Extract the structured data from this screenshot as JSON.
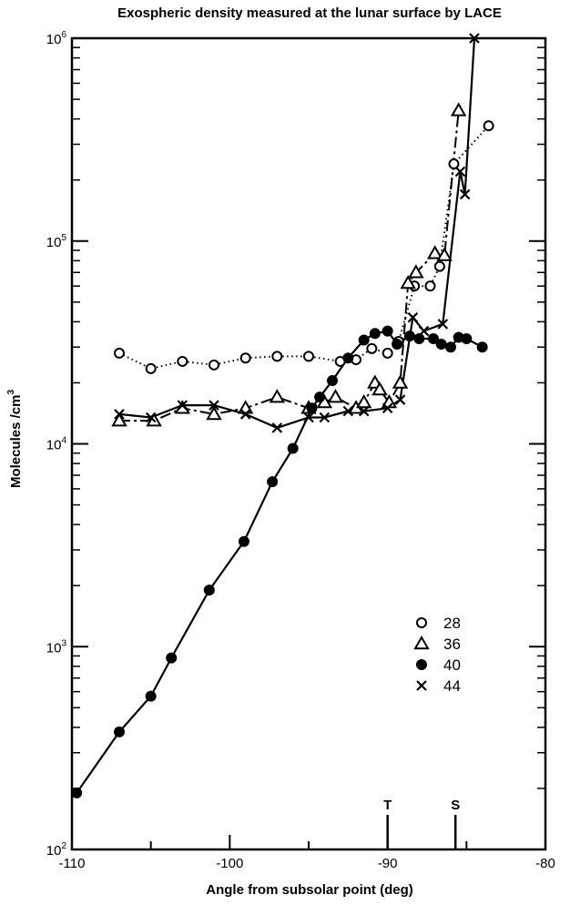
{
  "chart_data": {
    "type": "line",
    "title": "Exospheric density measured at the lunar surface by LACE",
    "xlabel": "Angle from subsolar point (deg)",
    "ylabel": "Molecules /cm",
    "ylabel_sup": "3",
    "xlim": [
      -110,
      -80
    ],
    "ylim": [
      100,
      1000000
    ],
    "y_scale": "log",
    "x_ticks": [
      -110,
      -100,
      -90,
      -80
    ],
    "x_tick_labels": [
      "-110",
      "-100",
      "-90",
      "-80"
    ],
    "y_ticks": [
      {
        "value": 100,
        "base": "10",
        "exp": "2"
      },
      {
        "value": 1000,
        "base": "10",
        "exp": "3"
      },
      {
        "value": 10000,
        "base": "10",
        "exp": "4"
      },
      {
        "value": 100000,
        "base": "10",
        "exp": "5"
      },
      {
        "value": 1000000,
        "base": "10",
        "exp": "6"
      }
    ],
    "grid": false,
    "legend_position": "lower-right",
    "markers": [
      {
        "label": "T",
        "x": -90
      },
      {
        "label": "S",
        "x": -85.7
      }
    ],
    "series": [
      {
        "name": "28",
        "marker": "open-circle",
        "line": "dotted",
        "points": [
          [
            -107,
            28000
          ],
          [
            -105,
            23500
          ],
          [
            -103,
            25500
          ],
          [
            -101,
            24500
          ],
          [
            -99,
            26500
          ],
          [
            -97,
            27000
          ],
          [
            -95,
            27000
          ],
          [
            -93,
            25500
          ],
          [
            -92,
            26000
          ],
          [
            -91,
            29500
          ],
          [
            -90,
            28000
          ],
          [
            -89.3,
            32000
          ],
          [
            -88.3,
            60000
          ],
          [
            -87.3,
            60000
          ],
          [
            -86.7,
            75000
          ],
          [
            -85.8,
            240000
          ],
          [
            -83.6,
            370000
          ]
        ]
      },
      {
        "name": "36",
        "marker": "open-triangle",
        "line": "dash-dot",
        "points": [
          [
            -107,
            13000
          ],
          [
            -104.8,
            13000
          ],
          [
            -103,
            15000
          ],
          [
            -101,
            14000
          ],
          [
            -99,
            15000
          ],
          [
            -97,
            17000
          ],
          [
            -95,
            15000
          ],
          [
            -94,
            16000
          ],
          [
            -93.3,
            17000
          ],
          [
            -92,
            15000
          ],
          [
            -91.5,
            16000
          ],
          [
            -90.8,
            20000
          ],
          [
            -90.5,
            18500
          ],
          [
            -89.9,
            16000
          ],
          [
            -89.2,
            20000
          ],
          [
            -88.7,
            62000
          ],
          [
            -88.2,
            70000
          ],
          [
            -87,
            87000
          ],
          [
            -86.4,
            85000
          ],
          [
            -85.5,
            440000
          ]
        ]
      },
      {
        "name": "40",
        "marker": "filled-circle",
        "line": "solid",
        "points": [
          [
            -109.7,
            190
          ],
          [
            -107,
            380
          ],
          [
            -105,
            570
          ],
          [
            -103.7,
            880
          ],
          [
            -101.3,
            1900
          ],
          [
            -99.1,
            3300
          ],
          [
            -97.3,
            6500
          ],
          [
            -96,
            9500
          ],
          [
            -94.8,
            15000
          ],
          [
            -94.3,
            17000
          ],
          [
            -93.5,
            20500
          ],
          [
            -92.5,
            26500
          ],
          [
            -91.5,
            32500
          ],
          [
            -90.8,
            35000
          ],
          [
            -90,
            36000
          ],
          [
            -89.4,
            31000
          ],
          [
            -88.6,
            34000
          ],
          [
            -88,
            33000
          ],
          [
            -87.1,
            33000
          ],
          [
            -86.6,
            31000
          ],
          [
            -86,
            30000
          ],
          [
            -85.5,
            33500
          ],
          [
            -85,
            33000
          ],
          [
            -84,
            30000
          ]
        ]
      },
      {
        "name": "44",
        "marker": "cross",
        "line": "solid",
        "points": [
          [
            -107,
            14000
          ],
          [
            -105,
            13500
          ],
          [
            -103,
            15500
          ],
          [
            -101,
            15500
          ],
          [
            -99,
            14000
          ],
          [
            -97,
            12000
          ],
          [
            -95,
            13500
          ],
          [
            -94,
            13500
          ],
          [
            -92.5,
            14500
          ],
          [
            -91.5,
            14500
          ],
          [
            -90,
            15000
          ],
          [
            -89.2,
            16500
          ],
          [
            -88.4,
            42000
          ],
          [
            -87.7,
            36000
          ],
          [
            -86.5,
            39000
          ],
          [
            -85.4,
            220000
          ],
          [
            -85.1,
            170000
          ],
          [
            -84.5,
            1000000
          ]
        ]
      }
    ]
  }
}
